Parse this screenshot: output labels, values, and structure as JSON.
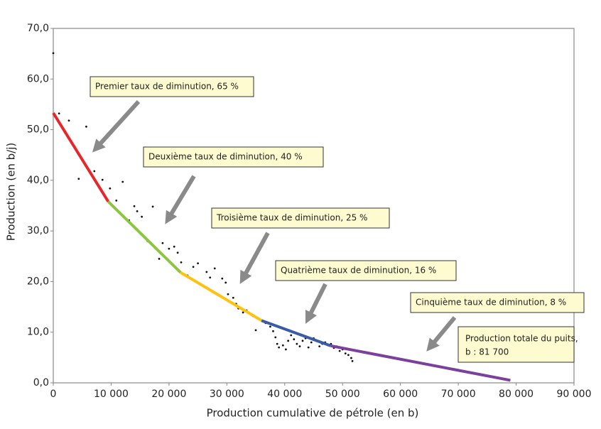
{
  "chart_data": {
    "type": "scatter",
    "x_label": "Production cumulative de pétrole (en b)",
    "y_label": "Production (en b/j)",
    "xlim": [
      0,
      90000
    ],
    "ylim": [
      0,
      70
    ],
    "xticks": [
      0,
      {
        "value": 10000,
        "label": "10 000"
      },
      {
        "value": 20000,
        "label": "20 000"
      },
      {
        "value": 30000,
        "label": "30 000"
      },
      {
        "value": 40000,
        "label": "40 000"
      },
      {
        "value": 50000,
        "label": "50 000"
      },
      {
        "value": 60000,
        "label": "60 000"
      },
      {
        "value": 70000,
        "label": "70 000"
      },
      {
        "value": 80000,
        "label": "80 000"
      },
      {
        "value": 90000,
        "label": "90 000"
      }
    ],
    "yticks": [
      {
        "value": 0,
        "label": "0,0"
      },
      {
        "value": 10,
        "label": "10,0"
      },
      {
        "value": 20,
        "label": "20,0"
      },
      {
        "value": 30,
        "label": "30,0"
      },
      {
        "value": 40,
        "label": "40,0"
      },
      {
        "value": 50,
        "label": "50,0"
      },
      {
        "value": 60,
        "label": "60,0"
      },
      {
        "value": 70,
        "label": "70,0"
      }
    ],
    "series": [
      {
        "mode": "markers",
        "color": "#111111",
        "x": [
          0,
          1000,
          2700,
          5700,
          4400,
          7100,
          8500,
          9800,
          12000,
          10900,
          14000,
          17200,
          14500,
          15300,
          13100,
          16300,
          18900,
          20900,
          20000,
          21500,
          18300,
          22100,
          24200,
          25000,
          23200,
          26500,
          27900,
          27100,
          29200,
          29800,
          30200,
          31100,
          31600,
          32000,
          32800,
          33400,
          34500,
          35000,
          36100,
          36700,
          37500,
          38000,
          38400,
          38700,
          39000,
          39700,
          40200,
          40600,
          41100,
          41600,
          42100,
          42600,
          43100,
          43600,
          44100,
          44600,
          45000,
          45600,
          46000,
          46500,
          47000,
          47500,
          48000,
          48500,
          49000,
          49500,
          50000,
          50500,
          51000,
          51500,
          51700
        ],
        "values": [
          65.1,
          53.2,
          51.8,
          50.6,
          40.3,
          41.8,
          40.1,
          38.4,
          39.7,
          36.0,
          34.9,
          34.8,
          33.9,
          32.8,
          32.1,
          28.0,
          27.6,
          26.9,
          26.5,
          25.7,
          24.5,
          23.8,
          22.9,
          23.6,
          21.2,
          21.9,
          22.6,
          20.8,
          20.6,
          19.8,
          17.5,
          16.8,
          15.6,
          14.7,
          13.9,
          14.3,
          13.2,
          10.4,
          12.3,
          11.8,
          11.1,
          10.2,
          9.0,
          7.7,
          7.0,
          7.4,
          6.6,
          8.3,
          9.4,
          8.6,
          7.7,
          7.2,
          8.3,
          8.8,
          7.0,
          8.0,
          8.8,
          8.3,
          7.2,
          7.7,
          8.0,
          7.4,
          7.7,
          6.9,
          7.2,
          6.3,
          6.6,
          5.8,
          5.5,
          4.9,
          4.3
        ]
      },
      {
        "mode": "lines",
        "color": "#e8262a",
        "x": [
          0,
          9500
        ],
        "values": [
          53.3,
          35.8
        ]
      },
      {
        "mode": "lines",
        "color": "#8cc63e",
        "x": [
          9500,
          22000
        ],
        "values": [
          35.8,
          21.8
        ]
      },
      {
        "mode": "lines",
        "color": "#ffc20e",
        "x": [
          22000,
          36000
        ],
        "values": [
          21.8,
          12.3
        ]
      },
      {
        "mode": "lines",
        "color": "#3a5ba8",
        "x": [
          36000,
          48000
        ],
        "values": [
          12.3,
          7.3
        ]
      },
      {
        "mode": "lines",
        "color": "#7b3f9e",
        "x": [
          48000,
          79000
        ],
        "values": [
          7.3,
          0.5
        ]
      }
    ],
    "annotations": [
      {
        "text": "Premier taux de diminution, 65 %"
      },
      {
        "text": "Deuxième taux de diminution, 40 %"
      },
      {
        "text": "Troisième taux de diminution, 25 %"
      },
      {
        "text": "Quatrième taux de diminution, 16 %"
      },
      {
        "text": "Cinquième taux de diminution, 8 %"
      },
      {
        "lines": [
          "Production totale du puits,",
          "b : 81 700"
        ]
      }
    ]
  }
}
